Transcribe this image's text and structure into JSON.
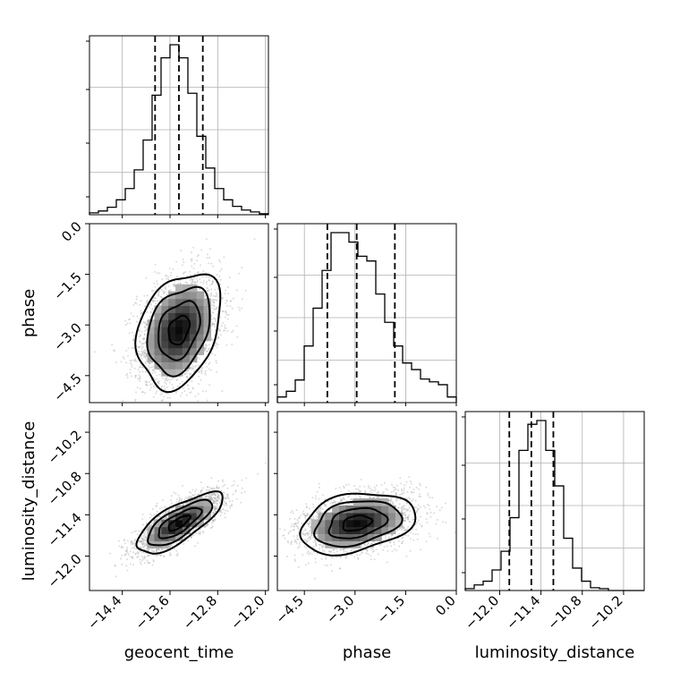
{
  "chart_data": {
    "type": "corner",
    "parameters": [
      "geocent_time",
      "phase",
      "luminosity_distance"
    ],
    "axis_labels": {
      "geocent_time": "geocent_time",
      "phase": "phase",
      "luminosity_distance": "luminosity_distance"
    },
    "ranges": {
      "geocent_time": [
        -14.95,
        -11.95
      ],
      "phase": [
        -5.3,
        0.0
      ],
      "luminosity_distance": [
        -12.5,
        -9.9
      ]
    },
    "ticks": {
      "geocent_time": {
        "values": [
          -14.4,
          -13.6,
          -12.8,
          -12.0
        ],
        "labels": [
          "−14.4",
          "−13.6",
          "−12.8",
          "−12.0"
        ]
      },
      "phase": {
        "values": [
          -4.5,
          -3.0,
          -1.5,
          0.0
        ],
        "labels": [
          "−4.5",
          "−3.0",
          "−1.5",
          "0.0"
        ]
      },
      "luminosity_distance": {
        "values": [
          -12.0,
          -11.4,
          -10.8,
          -10.2
        ],
        "labels": [
          "−12.0",
          "−11.4",
          "−10.8",
          "−10.2"
        ]
      }
    },
    "histograms": [
      {
        "parameter": "geocent_time",
        "edges": [
          -14.95,
          -14.8,
          -14.65,
          -14.5,
          -14.35,
          -14.2,
          -14.05,
          -13.9,
          -13.75,
          -13.6,
          -13.45,
          -13.3,
          -13.15,
          -13.0,
          -12.85,
          -12.7,
          -12.55,
          -12.4,
          -12.25,
          -12.1,
          -11.95
        ],
        "counts": [
          2,
          4,
          8,
          16,
          28,
          48,
          80,
          128,
          168,
          182,
          168,
          130,
          84,
          50,
          28,
          16,
          9,
          5,
          3,
          1
        ],
        "quantiles": [
          -13.85,
          -13.45,
          -13.05
        ]
      },
      {
        "parameter": "phase",
        "edges": [
          -5.3,
          -5.035,
          -4.77,
          -4.505,
          -4.24,
          -3.975,
          -3.71,
          -3.445,
          -3.18,
          -2.915,
          -2.65,
          -2.385,
          -2.12,
          -1.855,
          -1.59,
          -1.325,
          -1.06,
          -0.795,
          -0.53,
          -0.265,
          0.0
        ],
        "counts": [
          6,
          12,
          24,
          60,
          100,
          140,
          180,
          180,
          170,
          155,
          150,
          115,
          85,
          60,
          42,
          35,
          25,
          22,
          19,
          6
        ],
        "quantiles": [
          -3.82,
          -2.95,
          -1.82
        ]
      },
      {
        "parameter": "luminosity_distance",
        "edges": [
          -12.5,
          -12.37,
          -12.24,
          -12.11,
          -11.98,
          -11.85,
          -11.72,
          -11.59,
          -11.46,
          -11.33,
          -11.2,
          -11.07,
          -10.94,
          -10.81,
          -10.68,
          -10.55,
          -10.42,
          -10.29,
          -10.16,
          -10.03,
          -9.9
        ],
        "counts": [
          2,
          6,
          10,
          22,
          42,
          78,
          150,
          178,
          182,
          150,
          112,
          56,
          24,
          10,
          3,
          2,
          0,
          0,
          0,
          0
        ],
        "quantiles": [
          -11.86,
          -11.54,
          -11.22
        ]
      }
    ],
    "pairs": [
      {
        "x": "geocent_time",
        "y": "phase",
        "center": [
          -13.45,
          -3.15
        ],
        "sigma": [
          0.35,
          0.85
        ],
        "correlation": 0.3
      },
      {
        "x": "geocent_time",
        "y": "luminosity_distance",
        "center": [
          -13.45,
          -11.52
        ],
        "sigma": [
          0.36,
          0.22
        ],
        "correlation": 0.75
      },
      {
        "x": "phase",
        "y": "luminosity_distance",
        "center": [
          -2.95,
          -11.52
        ],
        "sigma": [
          0.85,
          0.22
        ],
        "correlation": 0.3
      }
    ],
    "contour_levels": [
      0.5,
      1.0,
      1.5,
      2.0
    ],
    "grid": true
  }
}
